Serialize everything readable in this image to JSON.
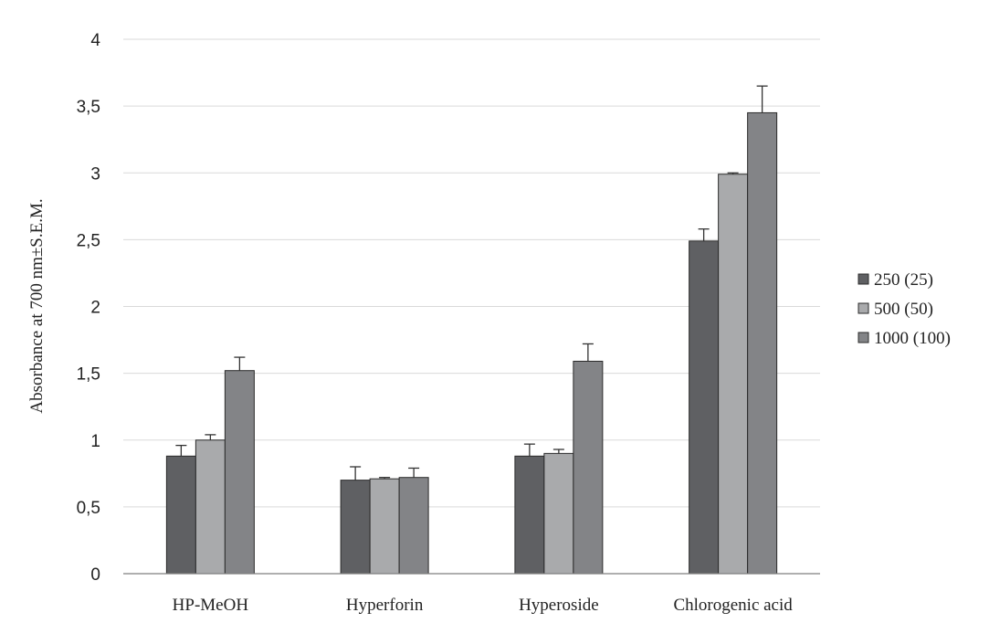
{
  "chart_data": {
    "type": "bar",
    "title": "",
    "xlabel": "",
    "ylabel": "Absorbance at 700 nm±S.E.M.",
    "ylim": [
      0,
      4
    ],
    "yticks": [
      "0",
      "0,5",
      "1",
      "1,5",
      "2",
      "2,5",
      "3",
      "3,5",
      "4"
    ],
    "ytick_values": [
      0,
      0.5,
      1,
      1.5,
      2,
      2.5,
      3,
      3.5,
      4
    ],
    "grid": true,
    "legend_position": "right",
    "categories": [
      "HP-MeOH",
      "Hyperforin",
      "Hyperoside",
      "Chlorogenic acid"
    ],
    "series": [
      {
        "name": "250 (25)",
        "color": "#5f6063",
        "values": [
          0.88,
          0.7,
          0.88,
          2.49
        ],
        "errors": [
          0.08,
          0.1,
          0.09,
          0.09
        ]
      },
      {
        "name": "500 (50)",
        "color": "#a9aaac",
        "values": [
          1.0,
          0.71,
          0.9,
          2.99
        ],
        "errors": [
          0.04,
          0.01,
          0.03,
          0.01
        ]
      },
      {
        "name": "1000 (100)",
        "color": "#838487",
        "values": [
          1.52,
          0.72,
          1.59,
          3.45
        ],
        "errors": [
          0.1,
          0.07,
          0.13,
          0.2
        ]
      }
    ]
  }
}
